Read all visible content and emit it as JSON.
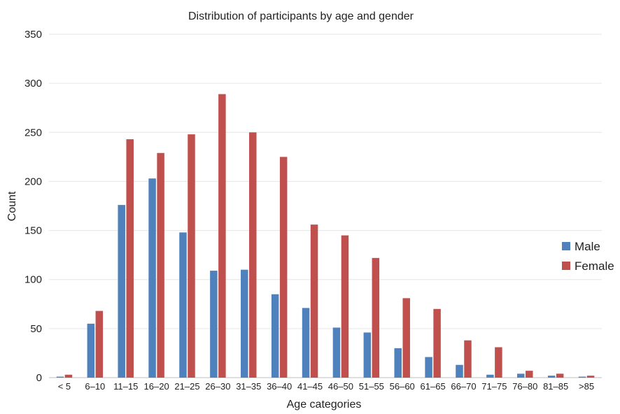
{
  "chart_data": {
    "type": "bar",
    "title": "Distribution of participants by age and gender",
    "xlabel": "Age categories",
    "ylabel": "Count",
    "ylim": [
      0,
      350
    ],
    "yticks": [
      0,
      50,
      100,
      150,
      200,
      250,
      300,
      350
    ],
    "grid": "horizontal",
    "legend": "right",
    "categories": [
      "< 5",
      "6–10",
      "11–15",
      "16–20",
      "21–25",
      "26–30",
      "31–35",
      "36–40",
      "41–45",
      "46–50",
      "51–55",
      "56–60",
      "61–65",
      "66–70",
      "71–75",
      "76–80",
      "81–85",
      ">85"
    ],
    "series": [
      {
        "name": "Male",
        "color": "#4f81bd",
        "values": [
          1,
          55,
          176,
          203,
          148,
          109,
          110,
          85,
          71,
          51,
          46,
          30,
          21,
          13,
          3,
          4,
          2,
          1
        ]
      },
      {
        "name": "Female",
        "color": "#c0504d",
        "values": [
          3,
          68,
          243,
          229,
          248,
          289,
          250,
          225,
          156,
          145,
          122,
          81,
          70,
          38,
          31,
          7,
          4,
          2
        ]
      }
    ]
  }
}
